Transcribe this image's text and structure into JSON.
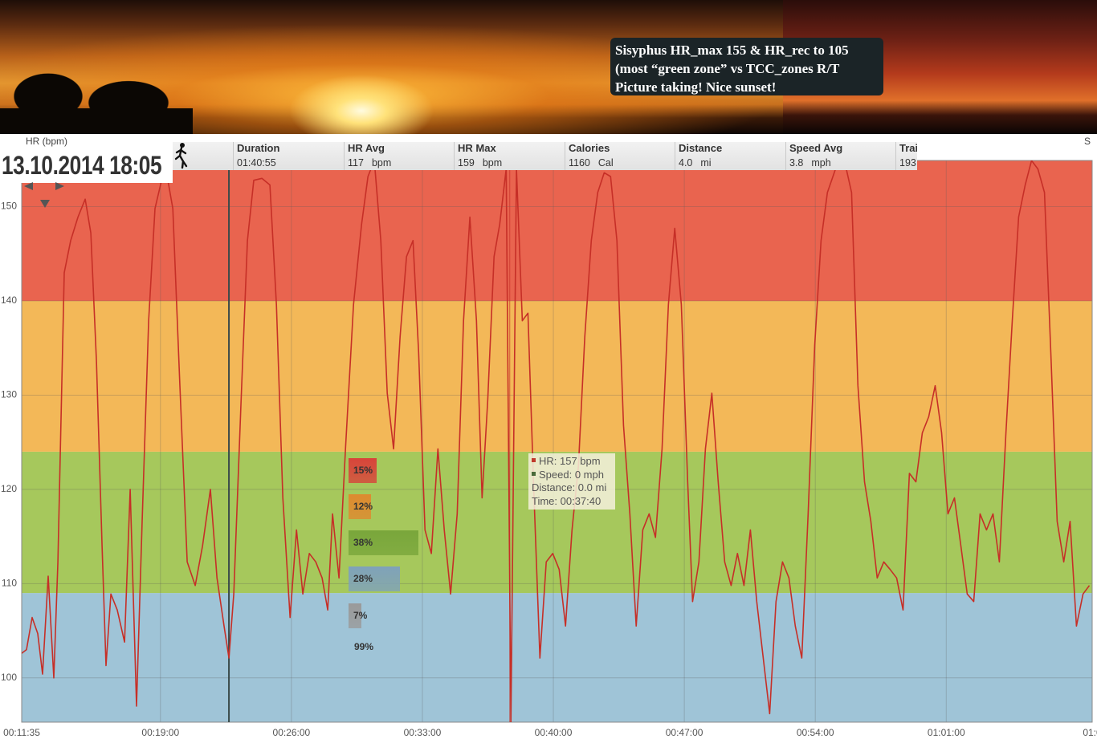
{
  "banner": {
    "lines": [
      "Sisyphus HR_max 155 & HR_rec to 105",
      "(most “green zone” vs TCC_zones R/T",
      "Picture taking! Nice sunset!"
    ]
  },
  "session_date": "13.10.2014 18:05",
  "stats": [
    {
      "label": "Duration",
      "value": "01:40:55"
    },
    {
      "label": "HR Avg",
      "value": "117",
      "unit": "bpm"
    },
    {
      "label": "HR Max",
      "value": "159",
      "unit": "bpm"
    },
    {
      "label": "Calories",
      "value": "1160",
      "unit": "Cal"
    },
    {
      "label": "Distance",
      "value": "4.0",
      "unit": "mi"
    },
    {
      "label": "Speed Avg",
      "value": "3.8",
      "unit": "mph"
    },
    {
      "label": "Trai",
      "value": "193"
    }
  ],
  "right_axis_label": "S",
  "tooltip": {
    "lines": [
      "HR: 157 bpm",
      "Speed: 0 mph",
      "Distance: 0.0 mi",
      "Time: 00:37:40"
    ],
    "colors": [
      "#c0392b",
      "#4a6b3a"
    ]
  },
  "zone_distribution": {
    "values": [
      15,
      12,
      38,
      28,
      7
    ],
    "value_labels": [
      "15%",
      "12%",
      "38%",
      "28%",
      "7%"
    ],
    "colors": [
      "#d8443a",
      "#de8a2f",
      "#79a63b",
      "#7fa2ba",
      "#9a9a9a"
    ],
    "total": 99,
    "total_label": "99%"
  },
  "chart_data": {
    "type": "line",
    "y_label": "HR (bpm)",
    "color": "#c62f27",
    "xlim": [
      11.583,
      68.8
    ],
    "ylim": [
      95.3,
      154.9
    ],
    "xticks": [
      {
        "value": 11.583,
        "label": "00:11:35"
      },
      {
        "value": 19,
        "label": "00:19:00"
      },
      {
        "value": 26,
        "label": "00:26:00"
      },
      {
        "value": 33,
        "label": "00:33:00"
      },
      {
        "value": 40,
        "label": "00:40:00"
      },
      {
        "value": 47,
        "label": "00:47:00"
      },
      {
        "value": 54,
        "label": "00:54:00"
      },
      {
        "value": 61,
        "label": "01:01:00"
      },
      {
        "value": 68.8,
        "label": "01:0"
      }
    ],
    "yticks": [
      100,
      110,
      120,
      130,
      140,
      150
    ],
    "grid": true,
    "zone_bounds": [
      109,
      124,
      140
    ],
    "zone_colors": [
      "#9fc4d7",
      "#a6c85c",
      "#f3b858",
      "#e9644f"
    ],
    "marker": 22.66,
    "cursor": 37.67,
    "x": [
      11.58,
      11.84,
      12.14,
      12.44,
      12.7,
      13.0,
      13.3,
      13.52,
      13.86,
      14.2,
      14.59,
      14.98,
      15.28,
      15.58,
      15.88,
      16.09,
      16.35,
      16.69,
      17.08,
      17.38,
      17.72,
      18.02,
      18.37,
      18.71,
      19.06,
      19.36,
      19.66,
      20.04,
      20.43,
      20.86,
      21.25,
      21.67,
      22.02,
      22.4,
      22.66,
      22.92,
      23.31,
      23.65,
      23.99,
      24.42,
      24.85,
      25.2,
      25.54,
      25.93,
      26.27,
      26.61,
      26.96,
      27.3,
      27.64,
      27.94,
      28.2,
      28.54,
      28.89,
      29.32,
      29.75,
      30.09,
      30.43,
      30.78,
      31.12,
      31.46,
      31.81,
      32.15,
      32.5,
      32.8,
      33.14,
      33.48,
      33.83,
      34.17,
      34.51,
      34.86,
      35.2,
      35.54,
      35.89,
      36.19,
      36.49,
      36.83,
      37.13,
      37.48,
      37.73,
      38.03,
      38.34,
      38.64,
      38.94,
      39.28,
      39.62,
      39.97,
      40.31,
      40.65,
      41.0,
      41.34,
      41.68,
      42.03,
      42.37,
      42.72,
      43.06,
      43.4,
      43.75,
      44.09,
      44.43,
      44.78,
      45.12,
      45.46,
      45.81,
      46.15,
      46.49,
      46.84,
      47.18,
      47.44,
      47.78,
      48.13,
      48.47,
      48.81,
      49.16,
      49.5,
      49.84,
      50.19,
      50.53,
      50.87,
      51.22,
      51.56,
      51.9,
      52.25,
      52.59,
      52.93,
      53.28,
      53.62,
      53.97,
      54.31,
      54.65,
      55.08,
      55.6,
      55.94,
      56.28,
      56.63,
      56.97,
      57.31,
      57.66,
      58.0,
      58.35,
      58.69,
      59.03,
      59.38,
      59.72,
      60.06,
      60.41,
      60.75,
      61.09,
      61.44,
      61.78,
      62.12,
      62.47,
      62.81,
      63.15,
      63.5,
      63.84,
      64.19,
      64.53,
      64.87,
      65.22,
      65.56,
      65.9,
      66.25,
      66.59,
      66.93,
      67.28,
      67.62,
      67.96,
      68.31,
      68.65
    ],
    "values": [
      102.6,
      103,
      106.4,
      104.7,
      100.4,
      110.8,
      100,
      112.3,
      143,
      146.4,
      148.9,
      150.8,
      147.2,
      133.6,
      114,
      101.3,
      108.9,
      107.2,
      103.8,
      120,
      97,
      116.6,
      137.9,
      149.8,
      152.8,
      153.2,
      149.8,
      131,
      112.3,
      109.8,
      114,
      120,
      110.6,
      105.5,
      102.1,
      108.9,
      129.4,
      146.4,
      152.8,
      153,
      152.3,
      139.6,
      119.1,
      106.4,
      115.7,
      108.9,
      113.2,
      112.3,
      110.6,
      107.2,
      117.4,
      110.6,
      124.3,
      139.6,
      148.1,
      153.2,
      154.9,
      146.4,
      130.2,
      124.3,
      136.2,
      144.7,
      146.4,
      134.5,
      115.7,
      113.2,
      124.3,
      115.7,
      108.9,
      117.4,
      137.9,
      148.9,
      137.9,
      119.1,
      129.4,
      144.7,
      148.1,
      154,
      95.3,
      154,
      137.9,
      138.7,
      120.8,
      102.1,
      112.3,
      113.2,
      111.5,
      105.5,
      115.7,
      122.5,
      136.2,
      146.4,
      151.5,
      153.6,
      153.2,
      146.4,
      126.8,
      117.4,
      105.5,
      115.7,
      117.4,
      114.9,
      124.3,
      139.6,
      147.7,
      139.6,
      120.8,
      108.1,
      112.3,
      124.3,
      130.2,
      120.8,
      112.3,
      109.8,
      113.2,
      109.8,
      115.7,
      108.1,
      102.1,
      96.2,
      108.1,
      112.3,
      110.6,
      105.5,
      102.1,
      117.4,
      135.3,
      146.4,
      151.5,
      154,
      154.5,
      151.5,
      131,
      120.8,
      116.6,
      110.6,
      112.3,
      111.5,
      110.6,
      107.2,
      121.7,
      120.8,
      126,
      127.7,
      131,
      126,
      117.4,
      119.1,
      114,
      108.9,
      108.1,
      117.4,
      115.7,
      117.4,
      112.3,
      126,
      137.9,
      148.9,
      152.3,
      154.9,
      154,
      151.5,
      134.5,
      116.6,
      112.3,
      116.6,
      105.5,
      108.9,
      109.8
    ]
  }
}
